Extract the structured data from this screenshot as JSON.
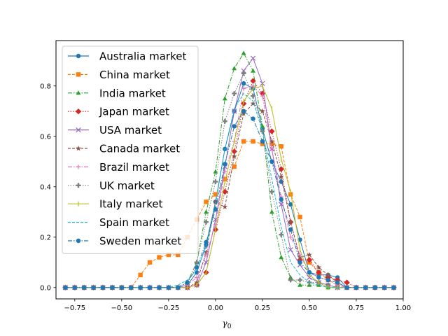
{
  "chart_data": {
    "type": "line",
    "title": "",
    "xlabel": "γ",
    "xlabel_sub": "0",
    "ylabel": "",
    "xlim": [
      -0.85,
      1.0
    ],
    "ylim": [
      -0.045,
      0.98
    ],
    "xticks": [
      -0.75,
      -0.5,
      -0.25,
      0.0,
      0.25,
      0.5,
      0.75,
      1.0
    ],
    "xtick_labels": [
      "−0.75",
      "−0.50",
      "−0.25",
      "0.00",
      "0.25",
      "0.50",
      "0.75",
      "1.00"
    ],
    "yticks": [
      0.0,
      0.2,
      0.4,
      0.6,
      0.8
    ],
    "ytick_labels": [
      "0.0",
      "0.2",
      "0.4",
      "0.6",
      "0.8"
    ],
    "grid": false,
    "legend_position": "top-left",
    "x": [
      -0.8,
      -0.75,
      -0.7,
      -0.65,
      -0.6,
      -0.55,
      -0.5,
      -0.45,
      -0.4,
      -0.35,
      -0.3,
      -0.25,
      -0.2,
      -0.15,
      -0.1,
      -0.05,
      0.0,
      0.05,
      0.1,
      0.15,
      0.2,
      0.25,
      0.3,
      0.35,
      0.4,
      0.45,
      0.5,
      0.55,
      0.6,
      0.65,
      0.7,
      0.75,
      0.8,
      0.85,
      0.9,
      0.95
    ],
    "series": [
      {
        "name": "Australia market",
        "color": "#1f77b4",
        "dash": "",
        "marker": "circle",
        "values": [
          0,
          0,
          0,
          0,
          0,
          0,
          0,
          0,
          0,
          0,
          0,
          0,
          0,
          0.01,
          0.06,
          0.17,
          0.34,
          0.55,
          0.7,
          0.81,
          0.79,
          0.63,
          0.5,
          0.42,
          0.33,
          0.19,
          0.06,
          0.05,
          0.05,
          0.04,
          0,
          0,
          0,
          0,
          0,
          0
        ]
      },
      {
        "name": "China market",
        "color": "#ff7f0e",
        "dash": "4,2",
        "marker": "square",
        "values": [
          0,
          0,
          0,
          0,
          0,
          0,
          0,
          0,
          0.05,
          0.1,
          0.12,
          0.13,
          0.13,
          0.2,
          0.27,
          0.34,
          0.37,
          0.43,
          0.48,
          0.58,
          0.58,
          0.57,
          0.57,
          0.56,
          0.37,
          0.28,
          0.1,
          0.06,
          0.03,
          0.01,
          0,
          0,
          0,
          0,
          0,
          0
        ]
      },
      {
        "name": "India market",
        "color": "#2ca02c",
        "dash": "6,2,1.5,2",
        "marker": "triangle",
        "values": [
          0,
          0,
          0,
          0,
          0,
          0,
          0,
          0,
          0,
          0,
          0,
          0,
          0,
          0.02,
          0.1,
          0.3,
          0.46,
          0.75,
          0.87,
          0.93,
          0.86,
          0.64,
          0.3,
          0.12,
          0.04,
          0.01,
          0.01,
          0.01,
          0,
          0,
          0,
          0,
          0,
          0,
          0,
          0
        ]
      },
      {
        "name": "Japan market",
        "color": "#d62728",
        "dash": "1.5,2",
        "marker": "diamond",
        "values": [
          0,
          0,
          0,
          0,
          0,
          0,
          0,
          0,
          0,
          0,
          0,
          0,
          0,
          0,
          0.01,
          0.06,
          0.23,
          0.38,
          0.54,
          0.73,
          0.82,
          0.77,
          0.62,
          0.47,
          0.26,
          0.11,
          0.11,
          0.06,
          0.04,
          0.03,
          0.02,
          0,
          0,
          0,
          0,
          0
        ]
      },
      {
        "name": "USA market",
        "color": "#9467bd",
        "dash": "",
        "marker": "x",
        "values": [
          0,
          0,
          0,
          0,
          0,
          0,
          0,
          0,
          0,
          0,
          0,
          0,
          0,
          0,
          0.01,
          0.1,
          0.27,
          0.48,
          0.7,
          0.86,
          0.91,
          0.81,
          0.55,
          0.33,
          0.15,
          0.09,
          0.04,
          0.02,
          0.01,
          0,
          0,
          0,
          0,
          0,
          0,
          0
        ]
      },
      {
        "name": "Canada market",
        "color": "#8c564b",
        "dash": "4,2",
        "marker": "star",
        "values": [
          0,
          0,
          0,
          0,
          0,
          0,
          0,
          0,
          0,
          0,
          0,
          0,
          0,
          0,
          0.02,
          0.14,
          0.34,
          0.32,
          0.52,
          0.69,
          0.73,
          0.7,
          0.58,
          0.44,
          0.26,
          0.12,
          0.13,
          0.08,
          0.05,
          0.02,
          0,
          0,
          0,
          0,
          0,
          0
        ]
      },
      {
        "name": "Brazil market",
        "color": "#e377c2",
        "dash": "6,2,1.5,2",
        "marker": "plus",
        "values": [
          0,
          0,
          0,
          0,
          0,
          0,
          0,
          0,
          0,
          0,
          0,
          0,
          0,
          0.01,
          0.04,
          0.13,
          0.25,
          0.46,
          0.58,
          0.79,
          0.8,
          0.76,
          0.55,
          0.36,
          0.2,
          0.13,
          0.06,
          0.04,
          0.03,
          0.01,
          0,
          0,
          0,
          0,
          0,
          0
        ]
      },
      {
        "name": "UK market",
        "color": "#7f7f7f",
        "dash": "1.5,2",
        "marker": "plusfill",
        "values": [
          0,
          0,
          0,
          0,
          0,
          0,
          0,
          0,
          0,
          0,
          0,
          0,
          0,
          0.02,
          0.1,
          0.26,
          0.42,
          0.66,
          0.77,
          0.85,
          0.76,
          0.62,
          0.38,
          0.21,
          0.03,
          0.03,
          0.02,
          0.02,
          0.01,
          0,
          0,
          0,
          0,
          0,
          0,
          0
        ]
      },
      {
        "name": "Italy market",
        "color": "#bcbd22",
        "dash": "",
        "marker": "vline",
        "values": [
          0,
          0,
          0,
          0,
          0,
          0,
          0,
          0,
          0,
          0,
          0,
          0,
          0,
          0,
          0.01,
          0.06,
          0.23,
          0.42,
          0.58,
          0.74,
          0.79,
          0.8,
          0.71,
          0.51,
          0.38,
          0.15,
          0.05,
          0.02,
          0,
          0,
          0,
          0,
          0,
          0,
          0,
          0
        ]
      },
      {
        "name": "Spain market",
        "color": "#17becf",
        "dash": "4,2",
        "marker": "none",
        "values": [
          0,
          0,
          0,
          0,
          0,
          0,
          0,
          0,
          0,
          0,
          0,
          0,
          0.01,
          0.03,
          0.07,
          0.16,
          0.33,
          0.55,
          0.71,
          0.77,
          0.74,
          0.62,
          0.43,
          0.24,
          0.1,
          0.05,
          0.02,
          0.01,
          0,
          0,
          0,
          0,
          0,
          0,
          0,
          0
        ]
      },
      {
        "name": "Sweden market",
        "color": "#1f77b4",
        "dash": "6,2,1.5,2",
        "marker": "circle",
        "values": [
          0,
          0,
          0,
          0,
          0,
          0,
          0,
          0,
          0,
          0,
          0,
          0,
          0,
          0.02,
          0.08,
          0.18,
          0.31,
          0.49,
          0.64,
          0.7,
          0.67,
          0.58,
          0.5,
          0.35,
          0.23,
          0.1,
          0.06,
          0.04,
          0.03,
          0.02,
          0,
          0,
          0,
          0,
          0,
          0
        ]
      }
    ]
  }
}
